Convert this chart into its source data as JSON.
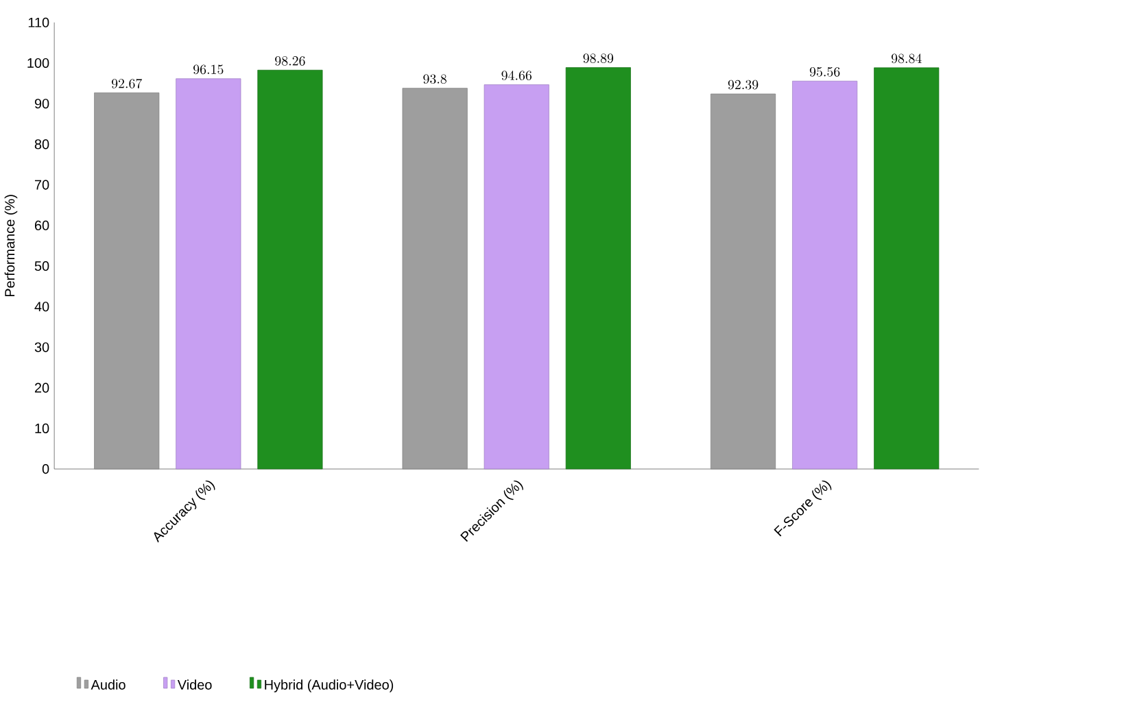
{
  "chart_data": {
    "type": "bar",
    "ylabel": "Performance (%)",
    "categories": [
      "Accuracy (%)",
      "Precision (%)",
      "F-Score (%)"
    ],
    "series": [
      {
        "name": "Audio",
        "color": "#9e9e9e",
        "values": [
          92.67,
          93.8,
          92.39
        ]
      },
      {
        "name": "Video",
        "color": "#c79ff2",
        "values": [
          96.15,
          94.66,
          95.56
        ]
      },
      {
        "name": "Hybrid (Audio+Video)",
        "color": "#1f8f1f",
        "values": [
          98.26,
          98.89,
          98.84
        ]
      }
    ],
    "ylim": [
      0,
      110
    ],
    "yticks": [
      0,
      10,
      20,
      30,
      40,
      50,
      60,
      70,
      80,
      90,
      100,
      110
    ],
    "data_labels": true,
    "legend": "bottom",
    "grid": false
  }
}
